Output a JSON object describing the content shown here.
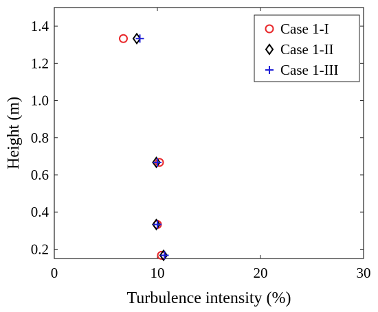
{
  "chart_data": {
    "type": "scatter",
    "xlabel": "Turbulence intensity (%)",
    "ylabel": "Height (m)",
    "xlim": [
      0,
      30
    ],
    "ylim": [
      0.15,
      1.5
    ],
    "xticks": [
      "0",
      "10",
      "20",
      "30"
    ],
    "yticks": [
      "0.2",
      "0.4",
      "0.6",
      "0.8",
      "1.0",
      "1.2",
      "1.4"
    ],
    "grid": false,
    "legend_position": "top-right",
    "series": [
      {
        "name": "Case 1-I",
        "marker": "circle",
        "color": "#e8282b",
        "points": [
          {
            "x": 6.7,
            "y": 1.333
          },
          {
            "x": 10.2,
            "y": 0.667
          },
          {
            "x": 10.0,
            "y": 0.333
          },
          {
            "x": 10.4,
            "y": 0.167
          }
        ]
      },
      {
        "name": "Case 1-II",
        "marker": "diamond",
        "color": "#000000",
        "points": [
          {
            "x": 8.0,
            "y": 1.333
          },
          {
            "x": 9.9,
            "y": 0.667
          },
          {
            "x": 9.9,
            "y": 0.333
          },
          {
            "x": 10.6,
            "y": 0.167
          }
        ]
      },
      {
        "name": "Case 1-III",
        "marker": "plus",
        "color": "#1f1fd6",
        "points": [
          {
            "x": 8.3,
            "y": 1.333
          },
          {
            "x": 10.0,
            "y": 0.667
          },
          {
            "x": 10.0,
            "y": 0.333
          },
          {
            "x": 10.7,
            "y": 0.167
          }
        ]
      }
    ]
  }
}
